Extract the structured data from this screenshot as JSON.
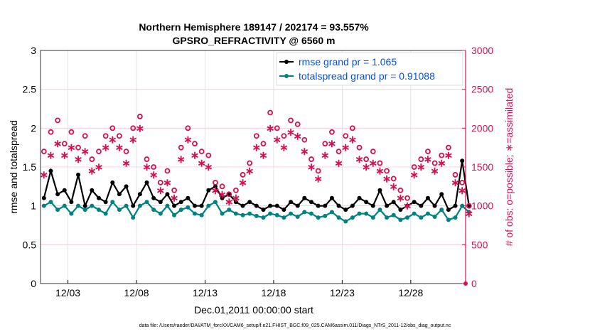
{
  "chart_data": {
    "type": "line",
    "title": [
      "Northern Hemisphere 189147 / 202174 = 93.557%",
      "GPSRO_REFRACTIVITY @ 6560 m"
    ],
    "xlabel": "Dec.01,2011 00:00:00 start",
    "ylabel": "rmse and totalspread",
    "y2label": "# of obs: o=possible; ∗=assimilated",
    "xlim": [
      0,
      31
    ],
    "ylim": [
      0,
      3
    ],
    "y2lim": [
      0,
      3000
    ],
    "xticks": [
      {
        "x": 2,
        "label": "12/03"
      },
      {
        "x": 7,
        "label": "12/08"
      },
      {
        "x": 12,
        "label": "12/13"
      },
      {
        "x": 17,
        "label": "12/18"
      },
      {
        "x": 22,
        "label": "12/23"
      },
      {
        "x": 27,
        "label": "12/28"
      }
    ],
    "yticks": [
      "0",
      "0.5",
      "1",
      "1.5",
      "2",
      "2.5",
      "3"
    ],
    "y2ticks": [
      "0",
      "500",
      "1000",
      "1500",
      "2000",
      "2500",
      "3000"
    ],
    "x_step_days": 0.5,
    "series": [
      {
        "name": "rmse grand pr = 1.065",
        "axis": "left",
        "color": "#000000",
        "values": [
          1.1,
          1.45,
          1.15,
          1.2,
          1.05,
          1.4,
          1.0,
          1.2,
          1.1,
          1.05,
          1.3,
          1.15,
          1.25,
          1.0,
          1.15,
          1.3,
          1.1,
          1.05,
          1.15,
          1.0,
          1.05,
          1.1,
          1.0,
          1.0,
          1.2,
          1.25,
          1.1,
          1.15,
          1.05,
          1.0,
          1.05,
          1.0,
          0.95,
          1.0,
          1.0,
          0.95,
          1.05,
          1.0,
          1.1,
          1.05,
          1.0,
          1.0,
          1.1,
          1.0,
          0.95,
          1.0,
          1.1,
          1.05,
          1.0,
          1.2,
          1.0,
          1.05,
          0.95,
          1.0,
          1.05,
          1.0,
          1.1,
          1.0,
          1.15,
          0.95,
          1.0,
          1.58,
          1.0
        ]
      },
      {
        "name": "totalspread grand pr = 0.91088",
        "axis": "left",
        "color": "#00827f",
        "values": [
          1.0,
          1.05,
          0.95,
          1.0,
          0.9,
          1.0,
          0.95,
          1.0,
          0.95,
          0.9,
          1.05,
          0.95,
          1.0,
          0.85,
          1.0,
          1.05,
          0.95,
          0.9,
          1.0,
          0.88,
          0.95,
          0.98,
          0.9,
          0.88,
          1.0,
          1.05,
          0.9,
          0.95,
          0.9,
          0.88,
          0.9,
          0.87,
          0.85,
          0.9,
          0.88,
          0.85,
          0.9,
          0.86,
          0.92,
          0.9,
          0.85,
          0.87,
          0.92,
          0.85,
          0.8,
          0.85,
          0.9,
          0.9,
          0.85,
          0.95,
          0.85,
          0.88,
          0.82,
          0.85,
          0.9,
          0.85,
          0.9,
          0.86,
          0.95,
          0.82,
          0.85,
          1.0,
          0.92
        ]
      },
      {
        "name": "possible",
        "axis": "right",
        "color": "#d6104f",
        "marker": "o",
        "values": [
          1700,
          1950,
          2100,
          1800,
          1950,
          1750,
          1900,
          1600,
          1700,
          1900,
          2000,
          1900,
          1700,
          2000,
          2150,
          1600,
          1500,
          1300,
          1450,
          1200,
          1750,
          2000,
          1800,
          1700,
          1650,
          1300,
          1250,
          1150,
          1200,
          1400,
          1550,
          1900,
          1800,
          2200,
          2000,
          1900,
          2100,
          2050,
          1850,
          1600,
          1450,
          1800,
          1950,
          1700,
          1900,
          2000,
          1750,
          1600,
          1700,
          1550,
          1450,
          1350,
          1200,
          1100,
          1500,
          1600,
          1700,
          1550,
          1650,
          1750,
          1400,
          1300,
          1000
        ]
      },
      {
        "name": "assimilated",
        "axis": "right",
        "color": "#d6104f",
        "marker": "*",
        "values": [
          1400,
          1650,
          1800,
          1650,
          1750,
          1600,
          1700,
          1450,
          1500,
          1750,
          1850,
          1750,
          1550,
          1850,
          2000,
          1500,
          1400,
          1200,
          1300,
          1100,
          1600,
          1850,
          1650,
          1550,
          1500,
          1200,
          1150,
          1050,
          1100,
          1300,
          1450,
          1750,
          1650,
          2000,
          1850,
          1750,
          1950,
          1900,
          1700,
          1500,
          1350,
          1650,
          1800,
          1550,
          1750,
          1850,
          1600,
          1500,
          1550,
          1450,
          1350,
          1250,
          1100,
          1000,
          1400,
          1500,
          1600,
          1450,
          1550,
          1650,
          1300,
          1200,
          900
        ]
      }
    ]
  },
  "footer": "data file: /Users/raeder/DAI/ATM_forcXX/CAM6_setup/f.e21.FHIST_BGC.f09_025.CAM6assim.011/Diags_NTrS_2011-12/obs_diag_output.nc"
}
